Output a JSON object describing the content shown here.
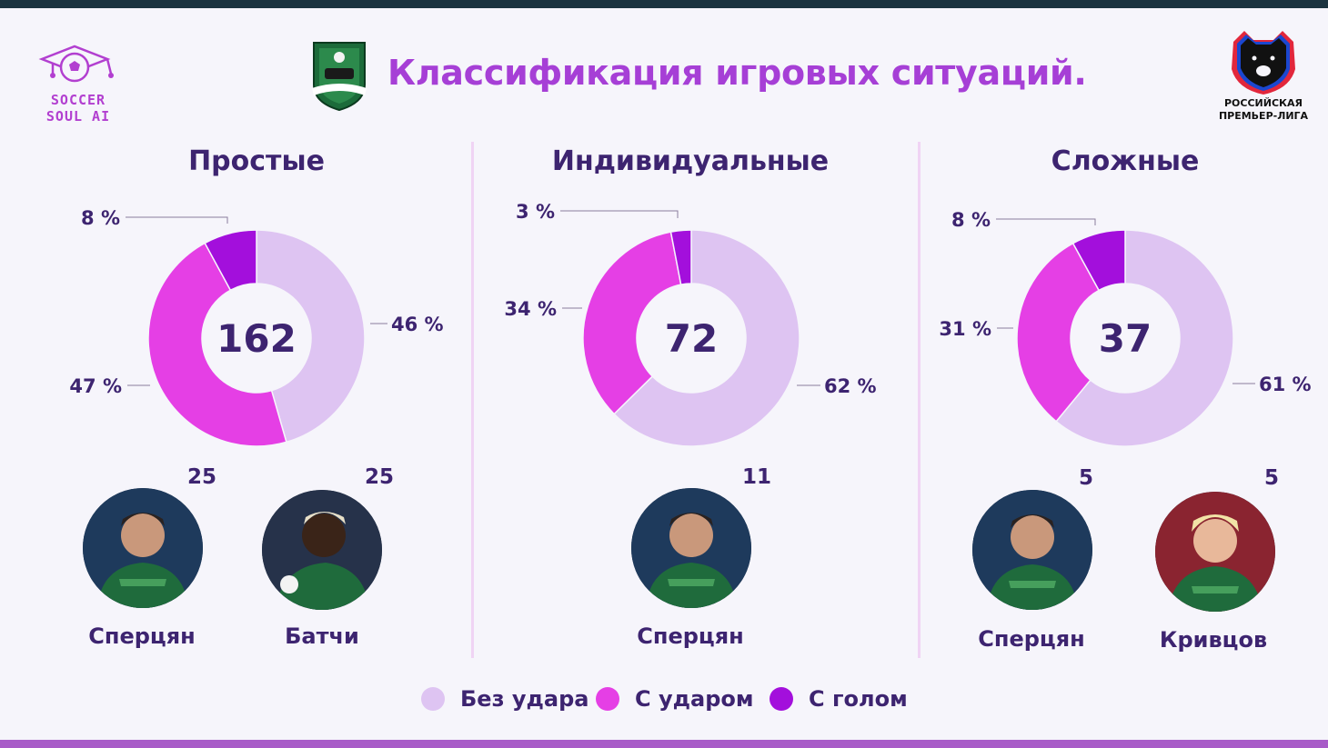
{
  "header": {
    "title": "Классификация игровых ситуаций.",
    "brand_logo_text": [
      "SOCCER",
      "SOUL AI"
    ],
    "league_logo_text": [
      "РОССИЙСКАЯ",
      "ПРЕМЬЕР-ЛИГА"
    ]
  },
  "colors": {
    "no_shot": "#dec4f2",
    "shot": "#e53fe5",
    "goal": "#a30fdc",
    "text": "#3d2470",
    "title": "#a63fd6"
  },
  "chart_data": [
    {
      "type": "pie",
      "title": "Простые",
      "total": "162",
      "categories": [
        "Без удара",
        "С ударом",
        "С голом"
      ],
      "values": [
        46,
        47,
        8
      ],
      "labels": [
        "46 %",
        "47 %",
        "8 %"
      ],
      "players": [
        {
          "name": "Сперцян",
          "count": "25"
        },
        {
          "name": "Батчи",
          "count": "25"
        }
      ]
    },
    {
      "type": "pie",
      "title": "Индивидуальные",
      "total": "72",
      "categories": [
        "Без удара",
        "С ударом",
        "С голом"
      ],
      "values": [
        62,
        34,
        3
      ],
      "labels": [
        "62 %",
        "34 %",
        "3 %"
      ],
      "players": [
        {
          "name": "Сперцян",
          "count": "11"
        }
      ]
    },
    {
      "type": "pie",
      "title": "Сложные",
      "total": "37",
      "categories": [
        "Без удара",
        "С ударом",
        "С голом"
      ],
      "values": [
        61,
        31,
        8
      ],
      "labels": [
        "61 %",
        "31 %",
        "8 %"
      ],
      "players": [
        {
          "name": "Сперцян",
          "count": "5"
        },
        {
          "name": "Кривцов",
          "count": "5"
        }
      ]
    }
  ],
  "legend": {
    "items": [
      {
        "label": "Без удара",
        "color": "#dec4f2"
      },
      {
        "label": "С ударом",
        "color": "#e53fe5"
      },
      {
        "label": "С голом",
        "color": "#a30fdc"
      }
    ]
  }
}
